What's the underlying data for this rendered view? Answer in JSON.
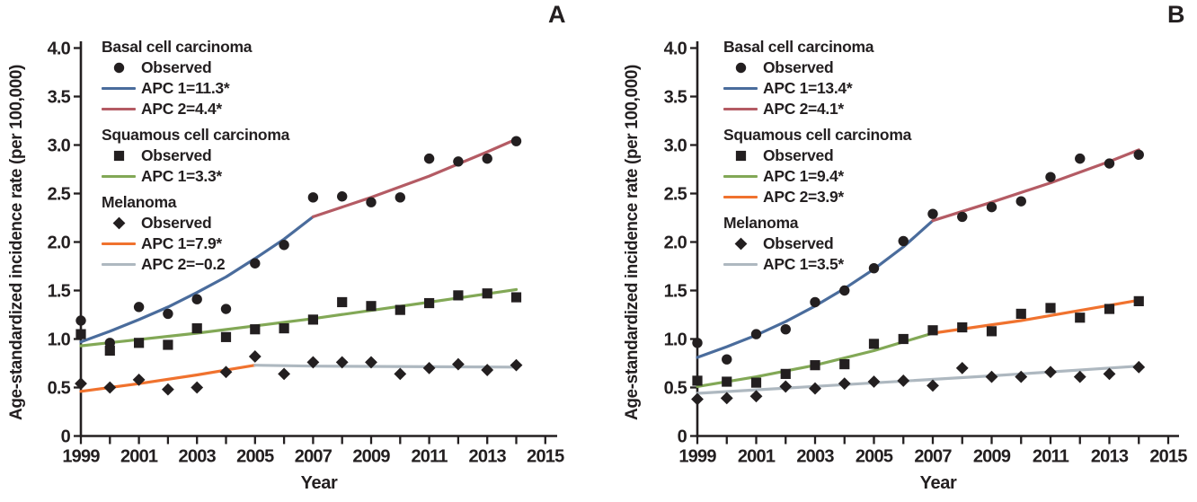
{
  "figure_name": "Age-standardized skin cancer incidence trends, two panels",
  "colors": {
    "blue": "#4a6c9c",
    "red": "#b45b64",
    "green": "#82a856",
    "orange": "#f0722e",
    "gray": "#aeb8c0",
    "ink": "#231f20"
  },
  "chart_data": [
    {
      "type": "line",
      "panel_label": "A",
      "xlabel": "Year",
      "ylabel": "Age-standardized incidence rate (per 100,000)",
      "xlim": [
        1999,
        2015
      ],
      "ylim": [
        0,
        4
      ],
      "x_tick_labels": [
        "1999",
        "2001",
        "2003",
        "2005",
        "2007",
        "2009",
        "2011",
        "2013",
        "2015"
      ],
      "y_ticks": [
        {
          "v": 0,
          "label": "0"
        },
        {
          "v": 0.5,
          "label": "0.5"
        },
        {
          "v": 1,
          "label": "1.0"
        },
        {
          "v": 1.5,
          "label": "1.5"
        },
        {
          "v": 2,
          "label": "2.0"
        },
        {
          "v": 2.5,
          "label": "2.5"
        },
        {
          "v": 3,
          "label": "3.0"
        },
        {
          "v": 3.5,
          "label": "3.5"
        },
        {
          "v": 4,
          "label": "4.0"
        }
      ],
      "years": [
        1999,
        2000,
        2001,
        2002,
        2003,
        2004,
        2005,
        2006,
        2007,
        2008,
        2009,
        2010,
        2011,
        2012,
        2013,
        2014
      ],
      "series": [
        {
          "name": "Basal cell carcinoma",
          "marker": "circle",
          "observed": [
            1.19,
            0.96,
            1.33,
            1.26,
            1.41,
            1.31,
            1.78,
            1.97,
            2.46,
            2.47,
            2.41,
            2.46,
            2.86,
            2.83,
            2.86,
            3.04
          ],
          "legend": [
            {
              "swatch": "marker",
              "label": "Observed"
            },
            {
              "swatch": "line",
              "color": "blue",
              "label": "APC 1=11.3*"
            },
            {
              "swatch": "line",
              "color": "red",
              "label": "APC 2=4.4*"
            }
          ]
        },
        {
          "name": "Squamous cell carcinoma",
          "marker": "square",
          "observed": [
            1.05,
            0.88,
            0.96,
            0.94,
            1.11,
            1.02,
            1.1,
            1.11,
            1.2,
            1.38,
            1.34,
            1.3,
            1.37,
            1.45,
            1.47,
            1.43
          ],
          "legend": [
            {
              "swatch": "marker",
              "label": "Observed"
            },
            {
              "swatch": "line",
              "color": "green",
              "label": "APC 1=3.3*"
            }
          ]
        },
        {
          "name": "Melanoma",
          "marker": "diamond",
          "observed": [
            0.54,
            0.5,
            0.58,
            0.48,
            0.5,
            0.66,
            0.82,
            0.64,
            0.76,
            0.76,
            0.76,
            0.64,
            0.7,
            0.74,
            0.68,
            0.73
          ],
          "legend": [
            {
              "swatch": "marker",
              "label": "Observed"
            },
            {
              "swatch": "line",
              "color": "orange",
              "label": "APC 1=7.9*"
            },
            {
              "swatch": "line",
              "color": "gray",
              "label": "APC 2=−0.2"
            }
          ]
        }
      ],
      "trend_segments": [
        {
          "color": "blue",
          "points": [
            [
              1999,
              0.97
            ],
            [
              2000,
              1.08
            ],
            [
              2001,
              1.2
            ],
            [
              2002,
              1.33
            ],
            [
              2003,
              1.48
            ],
            [
              2004,
              1.64
            ],
            [
              2005,
              1.83
            ],
            [
              2006,
              2.03
            ],
            [
              2007,
              2.26
            ]
          ]
        },
        {
          "color": "red",
          "points": [
            [
              2007,
              2.26
            ],
            [
              2009,
              2.46
            ],
            [
              2011,
              2.68
            ],
            [
              2013,
              2.93
            ],
            [
              2014,
              3.06
            ]
          ]
        },
        {
          "color": "green",
          "points": [
            [
              1999,
              0.93
            ],
            [
              2003,
              1.06
            ],
            [
              2007,
              1.21
            ],
            [
              2011,
              1.38
            ],
            [
              2014,
              1.51
            ]
          ]
        },
        {
          "color": "orange",
          "points": [
            [
              1999,
              0.46
            ],
            [
              2001,
              0.54
            ],
            [
              2003,
              0.63
            ],
            [
              2005,
              0.73
            ]
          ]
        },
        {
          "color": "gray",
          "points": [
            [
              2005,
              0.73
            ],
            [
              2007,
              0.72
            ],
            [
              2014,
              0.71
            ]
          ]
        }
      ]
    },
    {
      "type": "line",
      "panel_label": "B",
      "xlabel": "Year",
      "ylabel": "Age-standardized incidence rate (per 100,000)",
      "xlim": [
        1999,
        2015
      ],
      "ylim": [
        0,
        4
      ],
      "x_tick_labels": [
        "1999",
        "2001",
        "2003",
        "2005",
        "2007",
        "2009",
        "2011",
        "2013",
        "2015"
      ],
      "y_ticks": [
        {
          "v": 0,
          "label": "0"
        },
        {
          "v": 0.5,
          "label": "0.5"
        },
        {
          "v": 1,
          "label": "1.0"
        },
        {
          "v": 1.5,
          "label": "1.5"
        },
        {
          "v": 2,
          "label": "2.0"
        },
        {
          "v": 2.5,
          "label": "2.5"
        },
        {
          "v": 3,
          "label": "3.0"
        },
        {
          "v": 3.5,
          "label": "3.5"
        },
        {
          "v": 4,
          "label": "4.0"
        }
      ],
      "years": [
        1999,
        2000,
        2001,
        2002,
        2003,
        2004,
        2005,
        2006,
        2007,
        2008,
        2009,
        2010,
        2011,
        2012,
        2013,
        2014
      ],
      "series": [
        {
          "name": "Basal cell carcinoma",
          "marker": "circle",
          "observed": [
            0.96,
            0.79,
            1.05,
            1.1,
            1.38,
            1.5,
            1.73,
            2.01,
            2.29,
            2.26,
            2.36,
            2.42,
            2.67,
            2.86,
            2.81,
            2.9
          ],
          "legend": [
            {
              "swatch": "marker",
              "label": "Observed"
            },
            {
              "swatch": "line",
              "color": "blue",
              "label": "APC 1=13.4*"
            },
            {
              "swatch": "line",
              "color": "red",
              "label": "APC 2=4.1*"
            }
          ]
        },
        {
          "name": "Squamous cell carcinoma",
          "marker": "square",
          "observed": [
            0.57,
            0.56,
            0.55,
            0.64,
            0.73,
            0.74,
            0.95,
            1.0,
            1.09,
            1.12,
            1.08,
            1.26,
            1.32,
            1.22,
            1.31,
            1.39
          ],
          "legend": [
            {
              "swatch": "marker",
              "label": "Observed"
            },
            {
              "swatch": "line",
              "color": "green",
              "label": "APC 1=9.4*"
            },
            {
              "swatch": "line",
              "color": "orange",
              "label": "APC 2=3.9*"
            }
          ]
        },
        {
          "name": "Melanoma",
          "marker": "diamond",
          "observed": [
            0.38,
            0.39,
            0.41,
            0.51,
            0.49,
            0.54,
            0.56,
            0.57,
            0.52,
            0.7,
            0.61,
            0.61,
            0.66,
            0.61,
            0.64,
            0.71
          ],
          "legend": [
            {
              "swatch": "marker",
              "label": "Observed"
            },
            {
              "swatch": "line",
              "color": "gray",
              "label": "APC 1=3.5*"
            }
          ]
        }
      ],
      "trend_segments": [
        {
          "color": "blue",
          "points": [
            [
              1999,
              0.81
            ],
            [
              2000,
              0.92
            ],
            [
              2001,
              1.04
            ],
            [
              2002,
              1.18
            ],
            [
              2003,
              1.34
            ],
            [
              2004,
              1.52
            ],
            [
              2005,
              1.72
            ],
            [
              2006,
              1.95
            ],
            [
              2007,
              2.22
            ]
          ]
        },
        {
          "color": "red",
          "points": [
            [
              2007,
              2.22
            ],
            [
              2009,
              2.41
            ],
            [
              2011,
              2.61
            ],
            [
              2013,
              2.83
            ],
            [
              2014,
              2.95
            ]
          ]
        },
        {
          "color": "green",
          "points": [
            [
              1999,
              0.51
            ],
            [
              2001,
              0.61
            ],
            [
              2003,
              0.73
            ],
            [
              2005,
              0.88
            ],
            [
              2007,
              1.06
            ]
          ]
        },
        {
          "color": "orange",
          "points": [
            [
              2007,
              1.06
            ],
            [
              2010,
              1.19
            ],
            [
              2014,
              1.4
            ]
          ]
        },
        {
          "color": "gray",
          "points": [
            [
              1999,
              0.44
            ],
            [
              2004,
              0.53
            ],
            [
              2009,
              0.62
            ],
            [
              2014,
              0.72
            ]
          ]
        }
      ]
    }
  ]
}
